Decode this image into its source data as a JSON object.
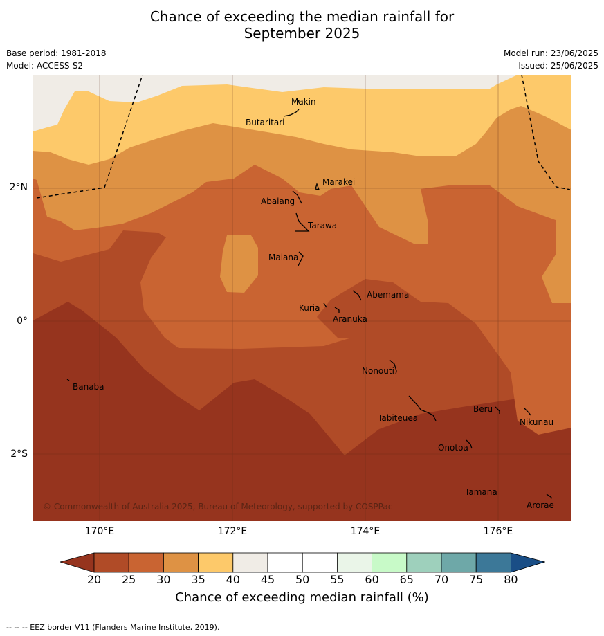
{
  "title_line1": "Chance of exceeding the median rainfall for",
  "title_line2": "September 2025",
  "base_period": "Base period: 1981-2018",
  "model": "Model: ACCESS-S2",
  "model_run": "Model run: 23/06/2025",
  "issued": "Issued: 25/06/2025",
  "longitudes": [
    "170°E",
    "172°E",
    "174°E",
    "176°E"
  ],
  "latitudes": [
    "2°N",
    "0°",
    "2°S"
  ],
  "places": [
    "Makin",
    "Butaritari",
    "Marakei",
    "Abaiang",
    "Tarawa",
    "Maiana",
    "Abemama",
    "Kuria",
    "Aranuka",
    "Nonouti",
    "Banaba",
    "Beru",
    "Nikunau",
    "Tabiteuea",
    "Onotoa",
    "Tamana",
    "Arorae"
  ],
  "copyright": "© Commonwealth of Australia 2025, Bureau of Meteorology, supported by COSPPac",
  "colorbar": {
    "ticks": [
      "20",
      "25",
      "30",
      "35",
      "40",
      "45",
      "50",
      "55",
      "60",
      "65",
      "70",
      "75",
      "80"
    ],
    "colors": [
      "#96341e",
      "#b04b27",
      "#c96432",
      "#de9244",
      "#fdc96a",
      "#f0ece6",
      "#ffffff",
      "#ffffff",
      "#eaf5e8",
      "#c8fac8",
      "#9ed0bc",
      "#6ea8a8",
      "#3c7898",
      "#1a4e86"
    ],
    "label": "Chance of exceeding median rainfall (%)"
  },
  "footnote": "--  --  -- EEZ border V11 (Flanders Marine Institute, 2019)."
}
